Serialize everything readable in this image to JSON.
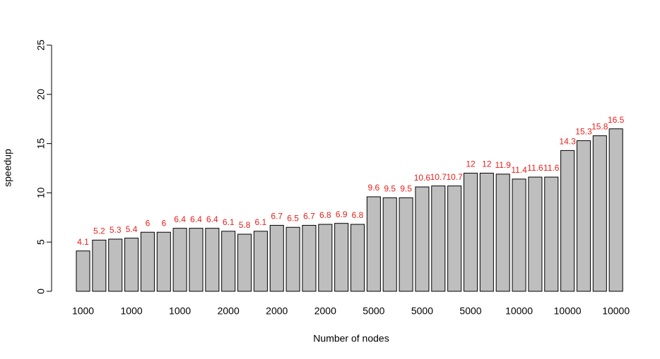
{
  "chart_data": {
    "type": "bar",
    "xlabel": "Number of nodes",
    "ylabel": "speedup",
    "categories": [
      "1000",
      null,
      null,
      "1000",
      null,
      null,
      "1000",
      null,
      null,
      "2000",
      null,
      null,
      "2000",
      null,
      null,
      "2000",
      null,
      null,
      "5000",
      null,
      null,
      "5000",
      null,
      null,
      "5000",
      null,
      null,
      "10000",
      null,
      null,
      "10000",
      null,
      null,
      "10000"
    ],
    "values": [
      4.1,
      5.2,
      5.3,
      5.4,
      6,
      6,
      6.4,
      6.4,
      6.4,
      6.1,
      5.8,
      6.1,
      6.7,
      6.5,
      6.7,
      6.8,
      6.9,
      6.8,
      9.6,
      9.5,
      9.5,
      10.6,
      10.7,
      10.7,
      12,
      12,
      11.9,
      11.4,
      11.6,
      11.6,
      14.3,
      15.3,
      15.8,
      16.5
    ],
    "color": "#bebebe",
    "label_color": "#e8201c",
    "ylim": [
      0,
      25
    ],
    "yticks": [
      0,
      5,
      10,
      15,
      20,
      25
    ]
  }
}
